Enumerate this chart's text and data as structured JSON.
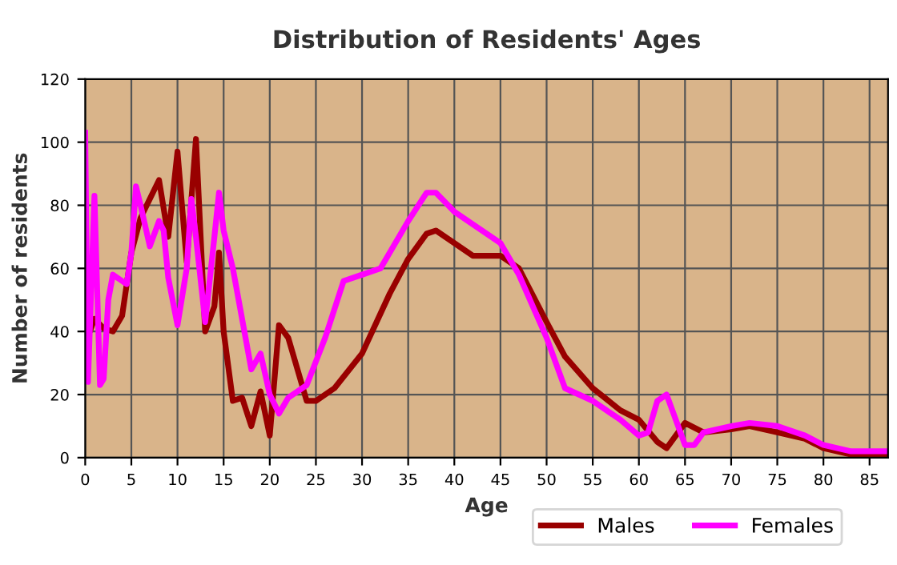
{
  "chart_data": {
    "type": "line",
    "title": "Distribution of Residents' Ages",
    "xlabel": "Age",
    "ylabel": "Number of residents",
    "xlim": [
      0,
      87
    ],
    "xticks": [
      0,
      5,
      10,
      15,
      20,
      25,
      30,
      35,
      40,
      45,
      50,
      55,
      60,
      65,
      70,
      75,
      80,
      85
    ],
    "ylim": [
      0,
      120
    ],
    "yticks": [
      0,
      20,
      40,
      60,
      80,
      100,
      120
    ],
    "grid": true,
    "legend": "bottom",
    "line_style": "solid",
    "marker": "none",
    "series": [
      {
        "name": "Males",
        "color": "#990000",
        "x": [
          0,
          0.5,
          1,
          2,
          3,
          4,
          5,
          6,
          7,
          8,
          9,
          10,
          11,
          12,
          13,
          14,
          14.5,
          15,
          16,
          17,
          18,
          19,
          20,
          21,
          22,
          23,
          24,
          25,
          27,
          30,
          33,
          35,
          37,
          38,
          40,
          42,
          45,
          47,
          50,
          52,
          55,
          58,
          60,
          62,
          63,
          65,
          67,
          70,
          72,
          75,
          78,
          80,
          83,
          87
        ],
        "values": [
          44,
          40,
          44,
          41,
          40,
          45,
          65,
          76,
          82,
          88,
          70,
          97,
          62,
          101,
          40,
          48,
          65,
          40,
          18,
          19,
          10,
          21,
          7,
          42,
          38,
          28,
          18,
          18,
          22,
          33,
          52,
          63,
          71,
          72,
          68,
          64,
          64,
          60,
          43,
          32,
          22,
          15,
          12,
          5,
          3,
          11,
          8,
          9,
          10,
          8,
          6,
          3,
          1,
          1
        ]
      },
      {
        "name": "Females",
        "color": "#ff00ff",
        "x": [
          0,
          0.3,
          1,
          1.6,
          2,
          2.5,
          3,
          4,
          4.5,
          5,
          5.5,
          6,
          7,
          8,
          8.5,
          9,
          10,
          11,
          11.5,
          12,
          13,
          14,
          14.5,
          15,
          16,
          18,
          19,
          20,
          21,
          22,
          24,
          26,
          28,
          30,
          32,
          35,
          37,
          38,
          40,
          42,
          45,
          47,
          50,
          52,
          55,
          58,
          60,
          61,
          62,
          63,
          64,
          65,
          66,
          67,
          70,
          72,
          75,
          78,
          80,
          83,
          87
        ],
        "values": [
          103,
          24,
          83,
          23,
          25,
          50,
          58,
          56,
          55,
          65,
          86,
          80,
          67,
          75,
          72,
          57,
          42,
          60,
          82,
          70,
          43,
          70,
          84,
          72,
          60,
          28,
          33,
          20,
          14,
          19,
          23,
          38,
          56,
          58,
          60,
          75,
          84,
          84,
          78,
          74,
          68,
          58,
          38,
          22,
          18,
          12,
          7,
          8,
          18,
          20,
          12,
          4,
          4,
          8,
          10,
          11,
          10,
          7,
          4,
          2,
          2
        ]
      }
    ]
  }
}
